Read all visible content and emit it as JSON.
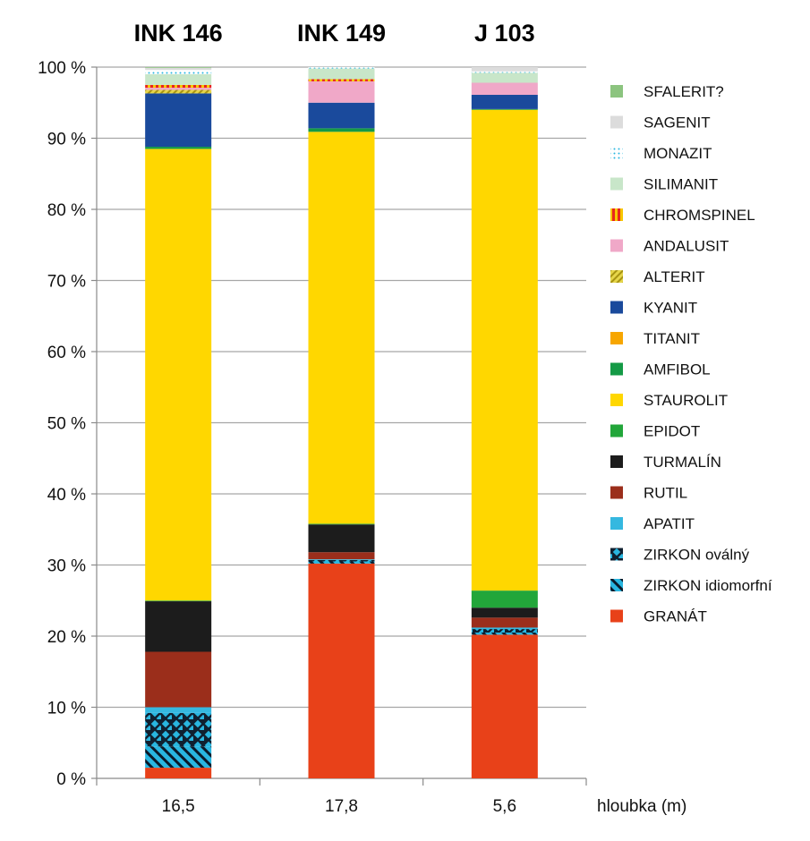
{
  "chart_data": {
    "type": "bar",
    "stacked": true,
    "categories": [
      "INK 146",
      "INK 149",
      "J 103"
    ],
    "x_tick_labels": [
      "16,5",
      "17,8",
      "5,6"
    ],
    "xlabel": "hloubka (m)",
    "ylabel": "",
    "ylim": [
      0,
      100
    ],
    "y_ticks": [
      0,
      10,
      20,
      30,
      40,
      50,
      60,
      70,
      80,
      90,
      100
    ],
    "y_tick_labels": [
      "0 %",
      "10 %",
      "20 %",
      "30 %",
      "40 %",
      "50 %",
      "60 %",
      "70 %",
      "80 %",
      "90 %",
      "100 %"
    ],
    "grid": true,
    "legend_position": "right",
    "series": [
      {
        "name": "GRANÁT",
        "color": "#e84119",
        "pattern": "solid",
        "values": [
          1.5,
          30.2,
          20.2
        ]
      },
      {
        "name": "ZIRKON idiomorfní",
        "color": "#29b6e0",
        "pattern": "diagonal",
        "values": [
          3.0,
          0.3,
          0.3
        ]
      },
      {
        "name": "ZIRKON oválný",
        "color": "#29b6e0",
        "pattern": "dots",
        "values": [
          4.7,
          0.2,
          0.5
        ]
      },
      {
        "name": "APATIT",
        "color": "#35b8e0",
        "pattern": "solid",
        "values": [
          0.8,
          0.1,
          0.2
        ]
      },
      {
        "name": "RUTIL",
        "color": "#9b2e1b",
        "pattern": "solid",
        "values": [
          7.8,
          1.0,
          1.4
        ]
      },
      {
        "name": "TURMALÍN",
        "color": "#1c1c1c",
        "pattern": "solid",
        "values": [
          7.1,
          3.9,
          1.4
        ]
      },
      {
        "name": "EPIDOT",
        "color": "#22a63a",
        "pattern": "solid",
        "values": [
          0.1,
          0.1,
          2.4
        ]
      },
      {
        "name": "STAUROLIT",
        "color": "#ffd700",
        "pattern": "solid",
        "values": [
          63.5,
          55.1,
          67.6
        ]
      },
      {
        "name": "AMFIBOL",
        "color": "#149a46",
        "pattern": "solid",
        "values": [
          0.3,
          0.5,
          0.1
        ]
      },
      {
        "name": "TITANIT",
        "color": "#f7a600",
        "pattern": "solid",
        "values": [
          0.0,
          0.0,
          0.0
        ]
      },
      {
        "name": "KYANIT",
        "color": "#1a4a9c",
        "pattern": "solid",
        "values": [
          7.5,
          3.6,
          2.0
        ]
      },
      {
        "name": "ALTERIT",
        "color": "#d6c52e",
        "pattern": "diagonal",
        "values": [
          0.5,
          0.0,
          0.0
        ]
      },
      {
        "name": "ANDALUSIT",
        "color": "#f0a8c8",
        "pattern": "solid",
        "values": [
          0.3,
          3.0,
          1.7
        ]
      },
      {
        "name": "CHROMSPINEL",
        "color": "#e8261b",
        "pattern": "stripes",
        "values": [
          0.4,
          0.3,
          0.0
        ]
      },
      {
        "name": "SILIMANIT",
        "color": "#c8e6c9",
        "pattern": "solid",
        "values": [
          1.5,
          1.5,
          1.4
        ]
      },
      {
        "name": "MONAZIT",
        "color": "#29b6e0",
        "pattern": "sparse-dots",
        "values": [
          0.6,
          0.2,
          0.2
        ]
      },
      {
        "name": "SAGENIT",
        "color": "#dcdcdc",
        "pattern": "solid",
        "values": [
          0.3,
          0.0,
          0.6
        ]
      },
      {
        "name": "SFALERIT?",
        "color": "#8cc47f",
        "pattern": "solid",
        "values": [
          0.1,
          0.0,
          0.0
        ]
      }
    ]
  }
}
